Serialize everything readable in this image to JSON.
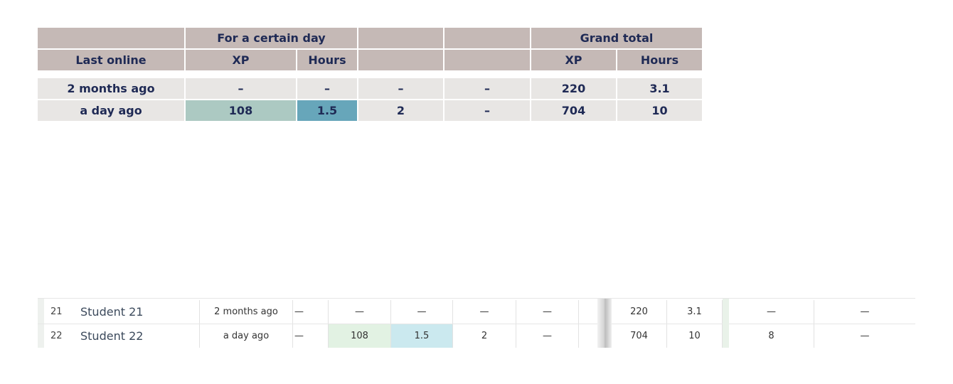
{
  "summary_table": {
    "header_row_1": {
      "col_last_online": "",
      "group_certain_day": "For a certain day",
      "col_extra_1": "",
      "col_extra_2": "",
      "group_grand_total": "Grand total"
    },
    "header_row_2": {
      "last_online": "Last online",
      "day_xp": "XP",
      "day_hours": "Hours",
      "extra_1": "",
      "extra_2": "",
      "total_xp": "XP",
      "total_hours": "Hours"
    },
    "rows": [
      {
        "last_online": "2 months ago",
        "day_xp": "–",
        "day_hours": "–",
        "extra_1": "–",
        "extra_2": "–",
        "total_xp": "220",
        "total_hours": "3.1"
      },
      {
        "last_online": "a day ago",
        "day_xp": "108",
        "day_hours": "1.5",
        "extra_1": "2",
        "extra_2": "–",
        "total_xp": "704",
        "total_hours": "10"
      }
    ],
    "colors": {
      "header_bg": "#c5b9b6",
      "body_bg": "#e8e6e4",
      "text": "#1f2a55",
      "highlight_xp": "#acc9c2",
      "highlight_hours": "#67a6ba"
    }
  },
  "student_table": {
    "rows": [
      {
        "index": "21",
        "name": "Student 21",
        "last_online": "2 months ago",
        "c_a": "—",
        "c_xp": "—",
        "c_hours": "—",
        "c_b": "—",
        "c_c": "—",
        "total_xp": "220",
        "total_hours": "3.1",
        "c_d": "—",
        "c_e": "—"
      },
      {
        "index": "22",
        "name": "Student 22",
        "last_online": "a day ago",
        "c_a": "—",
        "c_xp": "108",
        "c_hours": "1.5",
        "c_b": "2",
        "c_c": "—",
        "total_xp": "704",
        "total_hours": "10",
        "c_d": "8",
        "c_e": "—"
      }
    ],
    "colors": {
      "highlight_xp": "#e2f2e3",
      "highlight_hours": "#cbe9ef"
    }
  }
}
